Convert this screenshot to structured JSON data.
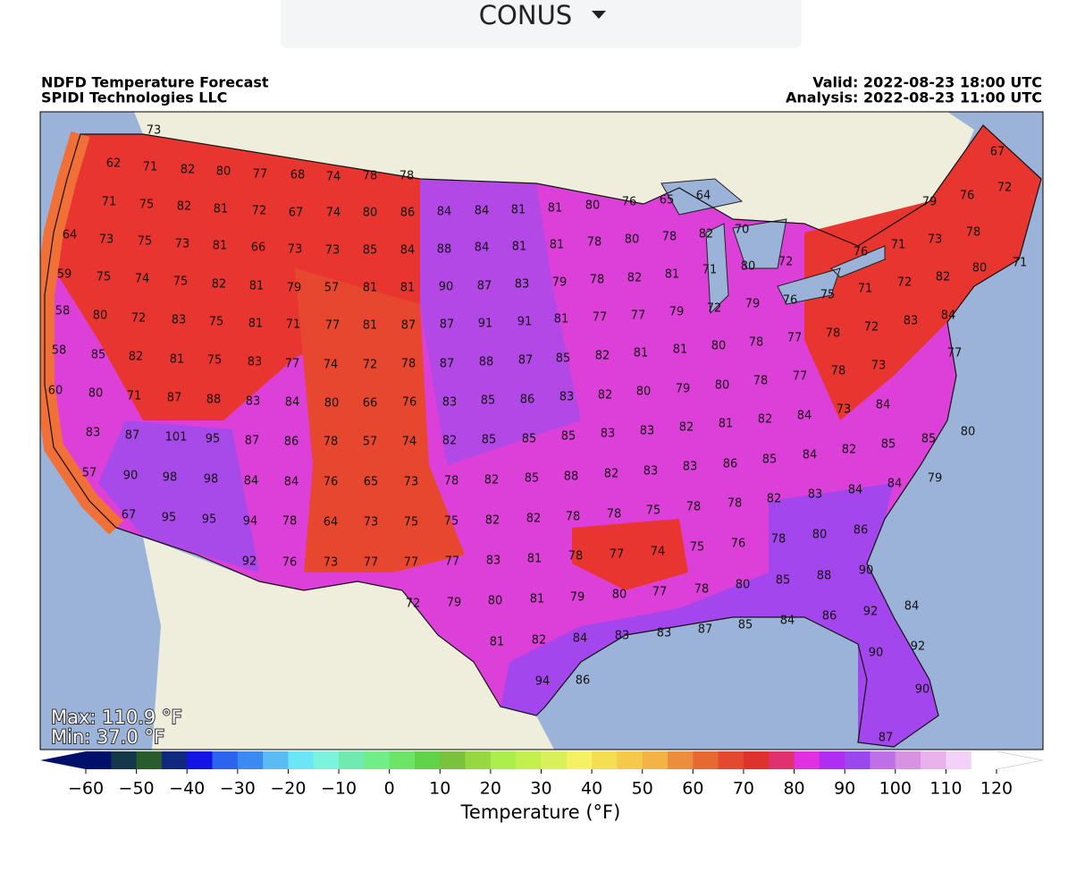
{
  "selector": {
    "label": "CONUS"
  },
  "header": {
    "title": "NDFD Temperature Forecast",
    "source": "SPIDI Technologies LLC",
    "valid": "Valid: 2022-08-23 18:00 UTC",
    "analysis": "Analysis: 2022-08-23 11:00 UTC"
  },
  "map": {
    "max": "Max: 110.9 °F",
    "min": "Min: 37.0 °F",
    "labels": [
      73,
      62,
      71,
      82,
      80,
      77,
      68,
      74,
      78,
      78,
      71,
      75,
      82,
      81,
      72,
      67,
      74,
      80,
      86,
      84,
      84,
      81,
      81,
      80,
      76,
      65,
      64,
      64,
      73,
      75,
      73,
      81,
      66,
      73,
      73,
      85,
      84,
      88,
      84,
      81,
      81,
      78,
      80,
      78,
      82,
      70,
      59,
      75,
      74,
      75,
      82,
      81,
      79,
      57,
      81,
      81,
      90,
      87,
      83,
      79,
      78,
      82,
      81,
      71,
      80,
      72,
      76,
      71,
      73,
      79,
      76,
      67,
      72,
      78,
      80,
      71,
      82,
      72,
      71,
      75,
      76,
      58,
      80,
      72,
      83,
      75,
      81,
      71,
      77,
      81,
      87,
      87,
      91,
      91,
      81,
      77,
      77,
      79,
      72,
      79,
      83,
      72,
      78,
      84,
      58,
      85,
      82,
      81,
      75,
      83,
      77,
      74,
      72,
      78,
      87,
      88,
      87,
      85,
      82,
      81,
      81,
      80,
      78,
      77,
      77,
      73,
      78,
      77,
      60,
      80,
      71,
      87,
      88,
      83,
      84,
      80,
      66,
      76,
      83,
      85,
      86,
      83,
      82,
      80,
      79,
      80,
      78,
      84,
      73,
      84,
      82,
      81,
      82,
      83,
      87,
      101,
      95,
      87,
      86,
      78,
      57,
      74,
      82,
      85,
      85,
      85,
      83,
      83,
      80,
      85,
      85,
      82,
      84,
      85,
      86,
      83,
      57,
      90,
      98,
      98,
      84,
      84,
      76,
      65,
      73,
      78,
      82,
      85,
      88,
      82,
      83,
      79,
      84,
      84,
      83,
      82,
      78,
      78,
      75,
      67,
      95,
      95,
      94,
      78,
      64,
      73,
      75,
      75,
      82,
      82,
      78,
      78,
      86,
      80,
      78,
      76,
      75,
      74,
      77,
      92,
      76,
      73,
      77,
      77,
      77,
      83,
      81,
      78,
      90,
      88,
      85,
      80,
      78,
      77,
      80,
      72,
      79,
      80,
      81,
      79,
      84,
      92,
      86,
      84,
      85,
      87,
      83,
      83,
      81,
      82,
      84,
      92,
      90,
      94,
      86,
      90,
      87
    ]
  },
  "colorbar": {
    "label": "Temperature (°F)",
    "clim": [
      -60,
      120
    ],
    "ticks": [
      -60,
      -50,
      -40,
      -30,
      -20,
      -10,
      0,
      10,
      20,
      30,
      40,
      50,
      60,
      70,
      80,
      90,
      100,
      110,
      120
    ],
    "colors": [
      "#00106a",
      "#14384a",
      "#285c2c",
      "#10287e",
      "#1414e4",
      "#2c64f0",
      "#3a8af2",
      "#5abcf2",
      "#6ae6f6",
      "#7cf4dc",
      "#70eab0",
      "#72ee88",
      "#6ce468",
      "#62d24a",
      "#7ac23e",
      "#96d840",
      "#acee4c",
      "#c4f04e",
      "#daf05a",
      "#f4f262",
      "#f6de52",
      "#f4ca4a",
      "#f2b444",
      "#ec8e3e",
      "#e86832",
      "#e4482e",
      "#e0322c",
      "#e0306e",
      "#e030e2",
      "#b02ef2",
      "#9a48ee",
      "#c070e6",
      "#d892e2",
      "#e8b2ec",
      "#f2d2f6",
      "#ffffff"
    ]
  }
}
